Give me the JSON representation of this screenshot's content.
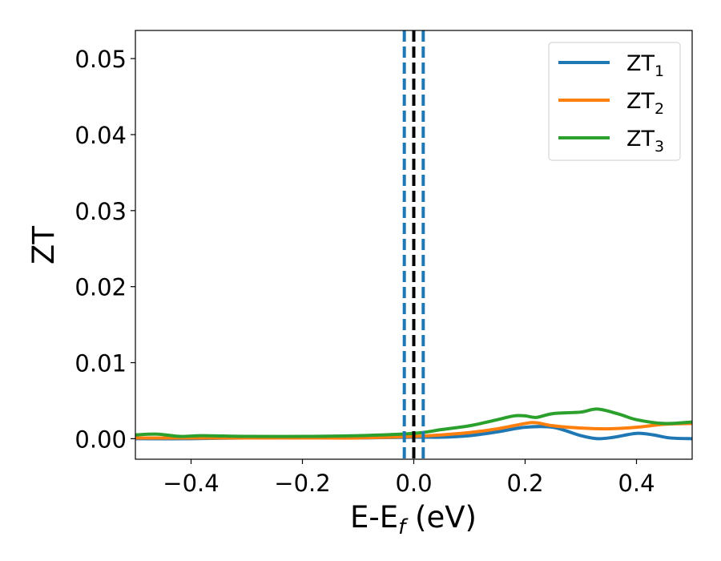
{
  "chart_data": {
    "type": "line",
    "title": "",
    "xlabel": "E-E",
    "xlabel_sub": "f",
    "xlabel_unit": " (eV)",
    "ylabel": "ZT",
    "xlim": [
      -0.5,
      0.5
    ],
    "ylim": [
      -0.0027,
      0.0537
    ],
    "xticks": [
      -0.4,
      -0.2,
      0.0,
      0.2,
      0.4
    ],
    "xtick_labels": [
      "−0.4",
      "−0.2",
      "0.0",
      "0.2",
      "0.4"
    ],
    "yticks": [
      0.0,
      0.01,
      0.02,
      0.03,
      0.04,
      0.05
    ],
    "ytick_labels": [
      "0.00",
      "0.01",
      "0.02",
      "0.03",
      "0.04",
      "0.05"
    ],
    "grid": false,
    "legend_position": "top-right",
    "vertical_lines": [
      {
        "x": -0.017,
        "style": "dashed",
        "color": "#1f77b4"
      },
      {
        "x": 0.0,
        "style": "dashed",
        "color": "#000000"
      },
      {
        "x": 0.017,
        "style": "dashed",
        "color": "#1f77b4"
      }
    ],
    "series": [
      {
        "name": "ZT",
        "name_sub": "1",
        "color": "#1f77b4",
        "x": [
          -0.5,
          -0.4,
          -0.3,
          -0.2,
          -0.1,
          0.0,
          0.05,
          0.1,
          0.15,
          0.2,
          0.25,
          0.3,
          0.33,
          0.36,
          0.4,
          0.43,
          0.46,
          0.5
        ],
        "y": [
          0.0,
          0.0,
          0.0001,
          0.0001,
          0.0001,
          0.0002,
          0.0002,
          0.0004,
          0.0009,
          0.0015,
          0.0015,
          0.0004,
          0.0,
          0.0002,
          0.0007,
          0.0005,
          0.0001,
          0.0
        ]
      },
      {
        "name": "ZT",
        "name_sub": "2",
        "color": "#ff7f0e",
        "x": [
          -0.5,
          -0.4,
          -0.3,
          -0.2,
          -0.1,
          0.0,
          0.05,
          0.1,
          0.15,
          0.2,
          0.22,
          0.25,
          0.3,
          0.35,
          0.4,
          0.45,
          0.5
        ],
        "y": [
          0.0001,
          0.0001,
          0.0001,
          0.0001,
          0.0001,
          0.0003,
          0.0005,
          0.0008,
          0.0013,
          0.002,
          0.0021,
          0.0017,
          0.0014,
          0.0013,
          0.0015,
          0.0019,
          0.002
        ]
      },
      {
        "name": "ZT",
        "name_sub": "3",
        "color": "#2ca02c",
        "x": [
          -0.5,
          -0.46,
          -0.42,
          -0.38,
          -0.3,
          -0.2,
          -0.1,
          0.0,
          0.05,
          0.1,
          0.15,
          0.18,
          0.2,
          0.22,
          0.25,
          0.3,
          0.33,
          0.37,
          0.4,
          0.45,
          0.5
        ],
        "y": [
          0.0005,
          0.0006,
          0.0003,
          0.0004,
          0.0003,
          0.0003,
          0.0004,
          0.0007,
          0.0012,
          0.0017,
          0.0025,
          0.003,
          0.003,
          0.0028,
          0.0033,
          0.0035,
          0.0039,
          0.0032,
          0.0025,
          0.002,
          0.0022
        ]
      }
    ]
  }
}
